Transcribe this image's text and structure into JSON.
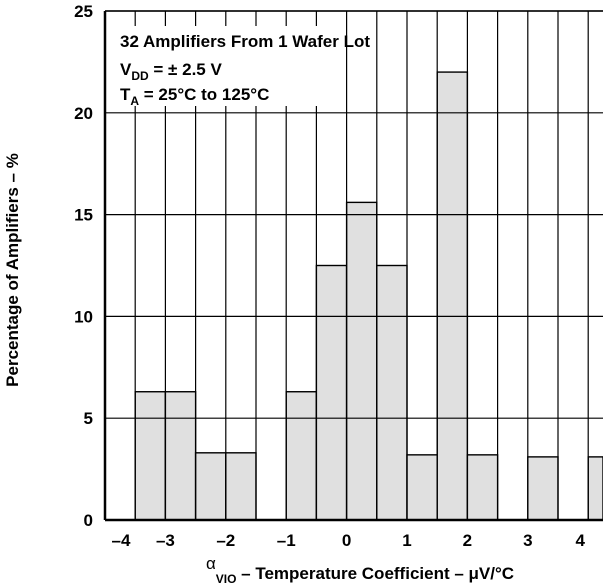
{
  "chart_data": {
    "type": "bar",
    "title": "",
    "xlabel": {
      "greek": "α",
      "subscript": "VIO",
      "rest": " – Temperature Coefficient – μV/°C"
    },
    "ylabel": "Percentage of Amplifiers – %",
    "annotation": {
      "line1": "32 Amplifiers From 1 Wafer Lot",
      "line2_main": "V",
      "line2_sub": "DD",
      "line2_rest": " = ± 2.5 V",
      "line3_main": "T",
      "line3_sub": "A",
      "line3_rest": " = 25°C to 125°C"
    },
    "xlim": [
      -4,
      4
    ],
    "ylim": [
      0,
      25
    ],
    "bin_width": 0.5,
    "bins": [
      {
        "x0": -4.0,
        "x1": -3.5,
        "value": 0
      },
      {
        "x0": -3.5,
        "x1": -3.0,
        "value": 6.3
      },
      {
        "x0": -3.0,
        "x1": -2.5,
        "value": 6.3
      },
      {
        "x0": -2.5,
        "x1": -2.0,
        "value": 3.3
      },
      {
        "x0": -2.0,
        "x1": -1.5,
        "value": 3.3
      },
      {
        "x0": -1.5,
        "x1": -1.0,
        "value": 0
      },
      {
        "x0": -1.0,
        "x1": -0.5,
        "value": 6.3
      },
      {
        "x0": -0.5,
        "x1": 0.0,
        "value": 12.5
      },
      {
        "x0": 0.0,
        "x1": 0.5,
        "value": 15.6
      },
      {
        "x0": 0.5,
        "x1": 1.0,
        "value": 12.5
      },
      {
        "x0": 1.0,
        "x1": 1.5,
        "value": 3.2
      },
      {
        "x0": 1.5,
        "x1": 2.0,
        "value": 22.0
      },
      {
        "x0": 2.0,
        "x1": 2.5,
        "value": 3.2
      },
      {
        "x0": 2.5,
        "x1": 3.0,
        "value": 0
      },
      {
        "x0": 3.0,
        "x1": 3.5,
        "value": 3.1
      },
      {
        "x0": 3.5,
        "x1": 4.0,
        "value": 0
      },
      {
        "x0": 4.0,
        "x1": 4.5,
        "value": 3.1
      }
    ],
    "x_ticks": [
      -4,
      -3,
      -2,
      -1,
      0,
      1,
      2,
      3,
      4
    ],
    "x_tick_labels": [
      "–4",
      "–3",
      "–2",
      "–1",
      "0",
      "1",
      "2",
      "3",
      "4"
    ],
    "y_ticks": [
      0,
      5,
      10,
      15,
      20,
      25
    ],
    "y_tick_labels": [
      "0",
      "5",
      "10",
      "15",
      "20",
      "25"
    ],
    "grid": "vertical lines at every bin edge, horizontal lines at y ticks",
    "bar_fill": "#e0e0e0",
    "line_color": "#000000"
  }
}
